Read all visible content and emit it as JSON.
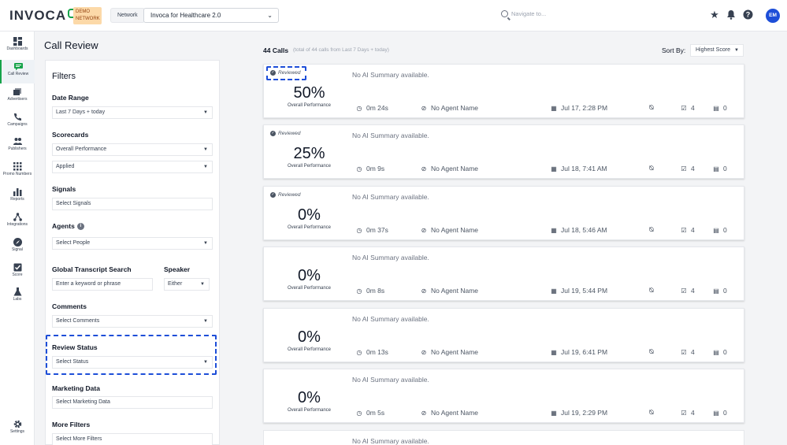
{
  "app": {
    "logo_text": "INVOCA",
    "demo_badge": "DEMO NETWORK",
    "network_label": "Network",
    "network_value": "Invoca for Healthcare 2.0",
    "search_placeholder": "Navigate to...",
    "user_initials": "EM",
    "brand_color": "#16a34a",
    "accent_color": "#1d4ed8"
  },
  "nav": [
    {
      "label": "Dashboards",
      "icon": "dashboard-icon"
    },
    {
      "label": "Call Review",
      "icon": "call-review-icon"
    },
    {
      "label": "Advertisers",
      "icon": "advertisers-icon"
    },
    {
      "label": "Campaigns",
      "icon": "campaigns-icon"
    },
    {
      "label": "Publishers",
      "icon": "publishers-icon"
    },
    {
      "label": "Promo Numbers",
      "icon": "promo-numbers-icon"
    },
    {
      "label": "Reports",
      "icon": "reports-icon"
    },
    {
      "label": "Integrations",
      "icon": "integrations-icon"
    },
    {
      "label": "Signal",
      "icon": "signal-icon"
    },
    {
      "label": "Score",
      "icon": "score-icon"
    },
    {
      "label": "Labs",
      "icon": "labs-icon"
    },
    {
      "label": "Settings",
      "icon": "gear-icon"
    }
  ],
  "page": {
    "title": "Call Review"
  },
  "filters": {
    "title": "Filters",
    "date_range_label": "Date Range",
    "date_range_value": "Last 7 Days + today",
    "scorecards_label": "Scorecards",
    "scorecard_value": "Overall Performance",
    "scorecard_state": "Applied",
    "signals_label": "Signals",
    "signals_placeholder": "Select Signals",
    "agents_label": "Agents",
    "agents_placeholder": "Select People",
    "transcript_label": "Global Transcript Search",
    "transcript_placeholder": "Enter a keyword or phrase",
    "speaker_label": "Speaker",
    "speaker_value": "Either",
    "comments_label": "Comments",
    "comments_placeholder": "Select Comments",
    "review_status_label": "Review Status",
    "review_status_placeholder": "Select Status",
    "marketing_label": "Marketing Data",
    "marketing_placeholder": "Select Marketing Data",
    "more_label": "More Filters",
    "more_placeholder": "Select More Filters"
  },
  "results": {
    "count": "44 Calls",
    "subtitle": "(total of 44 calls from Last 7 Days + today)",
    "sort_label": "Sort By:",
    "sort_value": "Highest Score"
  },
  "calls": [
    {
      "reviewed": "Reviewed",
      "summary": "No AI Summary available.",
      "percent": "50%",
      "perf_label": "Overall Performance",
      "duration": "0m 24s",
      "agent": "No Agent Name",
      "datetime": "Jul 17, 2:28 PM",
      "signals": "4",
      "comments": "0"
    },
    {
      "reviewed": "Reviewed",
      "summary": "No AI Summary available.",
      "percent": "25%",
      "perf_label": "Overall Performance",
      "duration": "0m 9s",
      "agent": "No Agent Name",
      "datetime": "Jul 18, 7:41 AM",
      "signals": "4",
      "comments": "0"
    },
    {
      "reviewed": "Reviewed",
      "summary": "No AI Summary available.",
      "percent": "0%",
      "perf_label": "Overall Performance",
      "duration": "0m 37s",
      "agent": "No Agent Name",
      "datetime": "Jul 18, 5:46 AM",
      "signals": "4",
      "comments": "0"
    },
    {
      "reviewed": "",
      "summary": "No AI Summary available.",
      "percent": "0%",
      "perf_label": "Overall Performance",
      "duration": "0m 8s",
      "agent": "No Agent Name",
      "datetime": "Jul 19, 5:44 PM",
      "signals": "4",
      "comments": "0"
    },
    {
      "reviewed": "",
      "summary": "No AI Summary available.",
      "percent": "0%",
      "perf_label": "Overall Performance",
      "duration": "0m 13s",
      "agent": "No Agent Name",
      "datetime": "Jul 19, 6:41 PM",
      "signals": "4",
      "comments": "0"
    },
    {
      "reviewed": "",
      "summary": "No AI Summary available.",
      "percent": "0%",
      "perf_label": "Overall Performance",
      "duration": "0m 5s",
      "agent": "No Agent Name",
      "datetime": "Jul 19, 2:29 PM",
      "signals": "4",
      "comments": "0"
    },
    {
      "reviewed": "",
      "summary": "No AI Summary available.",
      "percent": "",
      "perf_label": "",
      "duration": "",
      "agent": "",
      "datetime": "",
      "signals": "",
      "comments": ""
    }
  ]
}
